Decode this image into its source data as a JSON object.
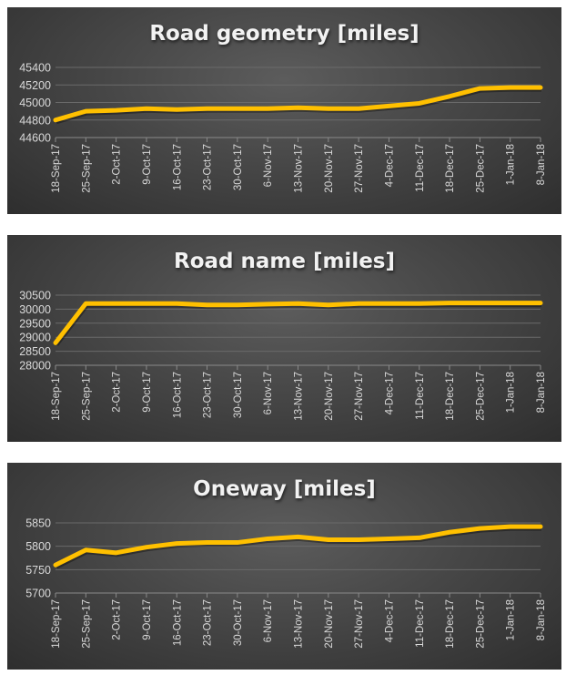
{
  "chart_data": [
    {
      "type": "line",
      "title": "Road geometry [miles]",
      "categories": [
        "18-Sep-17",
        "25-Sep-17",
        "2-Oct-17",
        "9-Oct-17",
        "16-Oct-17",
        "23-Oct-17",
        "30-Oct-17",
        "6-Nov-17",
        "13-Nov-17",
        "20-Nov-17",
        "27-Nov-17",
        "4-Dec-17",
        "11-Dec-17",
        "18-Dec-17",
        "25-Dec-17",
        "1-Jan-18",
        "8-Jan-18"
      ],
      "values": [
        44800,
        44900,
        44910,
        44930,
        44920,
        44930,
        44930,
        44930,
        44940,
        44930,
        44930,
        44960,
        44990,
        45070,
        45160,
        45170,
        45170
      ],
      "yticks": [
        "44600",
        "44800",
        "45000",
        "45200",
        "45400"
      ],
      "ylim": [
        44600,
        45400
      ],
      "grid": true,
      "line_color": "#FFC000"
    },
    {
      "type": "line",
      "title": "Road name [miles]",
      "categories": [
        "18-Sep-17",
        "25-Sep-17",
        "2-Oct-17",
        "9-Oct-17",
        "16-Oct-17",
        "23-Oct-17",
        "30-Oct-17",
        "6-Nov-17",
        "13-Nov-17",
        "20-Nov-17",
        "27-Nov-17",
        "4-Dec-17",
        "11-Dec-17",
        "18-Dec-17",
        "25-Dec-17",
        "1-Jan-18",
        "8-Jan-18"
      ],
      "values": [
        28800,
        30200,
        30200,
        30200,
        30200,
        30150,
        30150,
        30180,
        30200,
        30150,
        30200,
        30200,
        30200,
        30220,
        30220,
        30220,
        30220
      ],
      "yticks": [
        "28000",
        "28500",
        "29000",
        "29500",
        "30000",
        "30500"
      ],
      "ylim": [
        28000,
        30500
      ],
      "grid": true,
      "line_color": "#FFC000"
    },
    {
      "type": "line",
      "title": "Oneway [miles]",
      "categories": [
        "18-Sep-17",
        "25-Sep-17",
        "2-Oct-17",
        "9-Oct-17",
        "16-Oct-17",
        "23-Oct-17",
        "30-Oct-17",
        "6-Nov-17",
        "13-Nov-17",
        "20-Nov-17",
        "27-Nov-17",
        "4-Dec-17",
        "11-Dec-17",
        "18-Dec-17",
        "25-Dec-17",
        "1-Jan-18",
        "8-Jan-18"
      ],
      "values": [
        5760,
        5792,
        5786,
        5798,
        5806,
        5808,
        5808,
        5816,
        5820,
        5814,
        5814,
        5816,
        5818,
        5830,
        5838,
        5842,
        5842
      ],
      "yticks": [
        "5700",
        "5750",
        "5800",
        "5850"
      ],
      "ylim": [
        5700,
        5850
      ],
      "grid": true,
      "line_color": "#FFC000"
    }
  ]
}
